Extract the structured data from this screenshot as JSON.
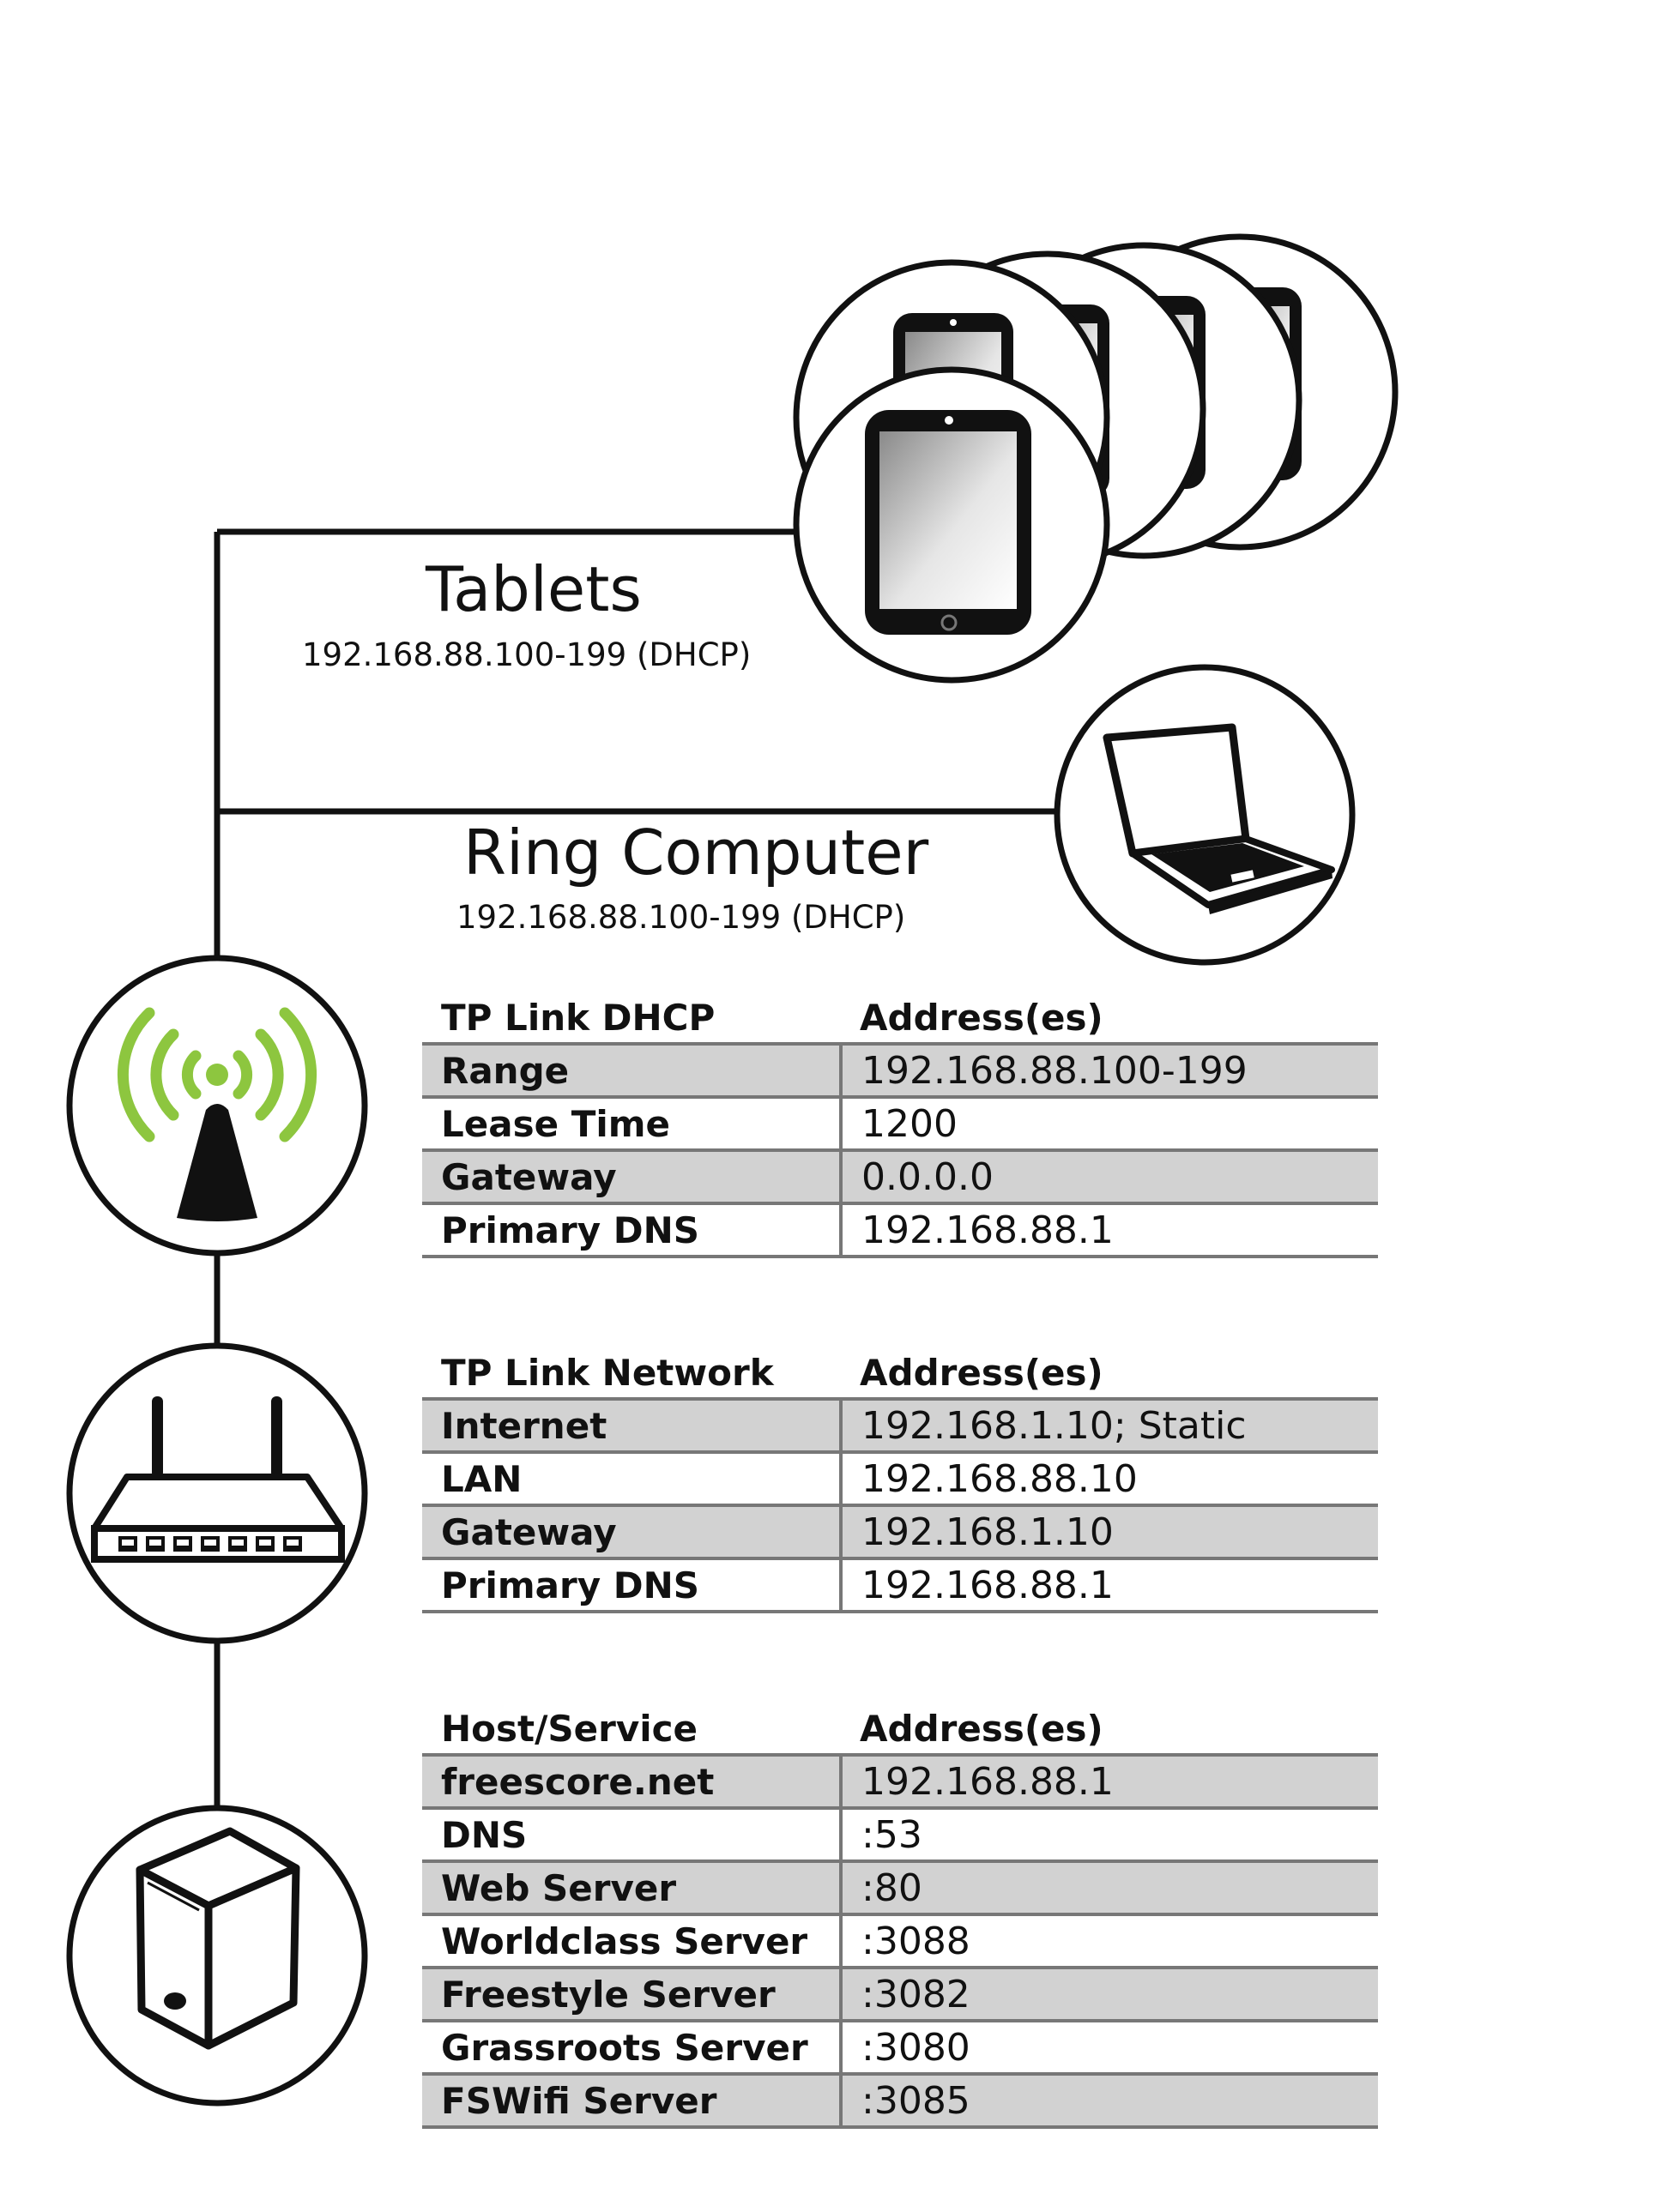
{
  "nodes": {
    "tablets": {
      "title": "Tablets",
      "subtitle": "192.168.88.100-199 (DHCP)"
    },
    "ring_computer": {
      "title": "Ring Computer",
      "subtitle": "192.168.88.100-199 (DHCP)"
    }
  },
  "colors": {
    "wifi_waves": "#8dc63f",
    "row_shade": "#d2d2d2",
    "line": "#111111"
  },
  "icons": [
    "tablet-stack-icon",
    "laptop-icon",
    "wifi-antenna-icon",
    "router-icon",
    "server-icon"
  ],
  "tables": [
    {
      "header": [
        "TP Link DHCP",
        "Address(es)"
      ],
      "rows": [
        [
          "Range",
          "192.168.88.100-199"
        ],
        [
          "Lease Time",
          "1200"
        ],
        [
          "Gateway",
          "0.0.0.0"
        ],
        [
          "Primary DNS",
          "192.168.88.1"
        ]
      ]
    },
    {
      "header": [
        "TP Link Network",
        "Address(es)"
      ],
      "rows": [
        [
          "Internet",
          "192.168.1.10; Static"
        ],
        [
          "LAN",
          "192.168.88.10"
        ],
        [
          "Gateway",
          "192.168.1.10"
        ],
        [
          "Primary DNS",
          "192.168.88.1"
        ]
      ]
    },
    {
      "header": [
        "Host/Service",
        "Address(es)"
      ],
      "rows": [
        [
          "freescore.net",
          "192.168.88.1"
        ],
        [
          "DNS",
          ":53"
        ],
        [
          "Web Server",
          ":80"
        ],
        [
          "Worldclass Server",
          ":3088"
        ],
        [
          "Freestyle Server",
          ":3082"
        ],
        [
          "Grassroots Server",
          ":3080"
        ],
        [
          "FSWifi Server",
          ":3085"
        ]
      ]
    }
  ]
}
